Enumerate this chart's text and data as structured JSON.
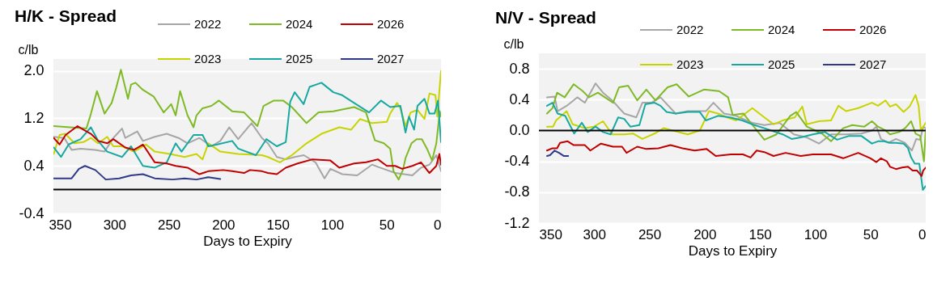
{
  "chart_data": [
    {
      "type": "line",
      "title": "H/K - Spread",
      "xlabel": "Days to Expiry",
      "ylabel": "c/lb",
      "xlim": [
        356,
        0
      ],
      "xticks": [
        350,
        300,
        250,
        200,
        150,
        100,
        50,
        0
      ],
      "ylim": [
        -0.4,
        2.2
      ],
      "yticks": [
        -0.4,
        0.4,
        1.2,
        {
          "value": 2,
          "label": "2.0"
        }
      ],
      "grid": "y",
      "legend": "top",
      "ref_lines": [
        {
          "axis": "y",
          "value": 0,
          "color": "#000000"
        }
      ],
      "series": [
        {
          "name": "2022",
          "color": "#a6a6a6",
          "x": [
            355.7,
            346,
            339.3,
            331,
            317.5,
            309,
            301,
            292.9,
            290,
            279,
            273.8,
            262.9,
            251.9,
            241,
            232.8,
            221.9,
            210.9,
            202.7,
            194.5,
            186.3,
            174,
            164.5,
            159,
            150.8,
            142.6,
            134.4,
            126,
            115.3,
            107,
            101.6,
            90.7,
            77,
            63.4,
            49.8,
            42,
            34.1,
            26.3,
            18.4,
            10.6,
            4.3,
            0
          ],
          "values": [
            0.89,
            0.87,
            0.67,
            0.69,
            0.67,
            0.64,
            0.87,
            1.03,
            0.87,
            0.98,
            0.82,
            0.89,
            0.94,
            0.87,
            0.78,
            0.87,
            0.73,
            0.82,
            1.05,
            0.85,
            1.12,
            0.87,
            0.78,
            0.55,
            0.51,
            0.55,
            0.58,
            0.46,
            0.19,
            0.35,
            0.26,
            0.24,
            0.42,
            0.33,
            0.28,
            0.26,
            0.24,
            0.37,
            0.42,
            0.58,
            0.31
          ]
        },
        {
          "name": "2023",
          "color": "#c8d400",
          "x": [
            355.7,
            350.3,
            345,
            336.6,
            328.4,
            321.6,
            314.8,
            306.6,
            301,
            292.9,
            282,
            271,
            262.9,
            249.2,
            235.5,
            224.6,
            219,
            213.7,
            202.7,
            186.3,
            164.5,
            159,
            148,
            137,
            123.5,
            109.8,
            93.4,
            82.5,
            74.3,
            63.4,
            49.8,
            46.7,
            40.4,
            37.3,
            32.6,
            27.9,
            21.6,
            15.2,
            10.6,
            5.1,
            3.4,
            0
          ],
          "values": [
            0.6,
            0.92,
            0.94,
            0.78,
            0.8,
            0.87,
            0.78,
            0.89,
            0.73,
            0.73,
            0.64,
            0.76,
            0.64,
            0.6,
            0.55,
            0.6,
            0.51,
            0.78,
            0.64,
            0.6,
            0.58,
            0.55,
            0.46,
            0.58,
            0.78,
            0.94,
            1.05,
            1.01,
            1.19,
            1.12,
            1.14,
            1.28,
            1.46,
            1.37,
            1.07,
            1.3,
            1.34,
            1.19,
            1.62,
            1.59,
            1.23,
            2.0
          ]
        },
        {
          "name": "2024",
          "color": "#7fba26",
          "x": [
            355.7,
            325.7,
            321.5,
            316,
            309,
            302.5,
            298.4,
            294,
            287.5,
            284.7,
            280.6,
            273.8,
            264,
            254.7,
            247.8,
            243.7,
            239.6,
            232.8,
            227.3,
            224.6,
            219,
            210.9,
            204,
            191.8,
            180.9,
            168.6,
            163,
            153.5,
            145,
            137,
            123.5,
            112.5,
            99,
            79.8,
            68.9,
            60.7,
            52.5,
            46.7,
            43.6,
            38.9,
            35,
            32.6,
            27.1,
            22.4,
            17.6,
            12.9,
            8.2,
            4.3,
            1.1,
            0
          ],
          "values": [
            1.07,
            1.03,
            1.28,
            1.66,
            1.28,
            1.46,
            1.71,
            2.02,
            1.53,
            1.77,
            1.8,
            1.68,
            1.57,
            1.3,
            1.44,
            1.25,
            1.66,
            1.25,
            1.05,
            1.25,
            1.37,
            1.41,
            1.5,
            1.32,
            1.3,
            1.07,
            1.41,
            1.5,
            1.5,
            1.39,
            1.12,
            1.3,
            1.32,
            1.39,
            1.3,
            0.83,
            0.78,
            0.69,
            0.31,
            0.17,
            0.33,
            0.53,
            0.78,
            0.85,
            0.85,
            0.69,
            0.49,
            0.78,
            1.32,
            1.23
          ]
        },
        {
          "name": "2025",
          "color": "#17a9a1",
          "x": [
            355.7,
            349,
            342,
            331,
            321.6,
            314.8,
            306.6,
            292.9,
            284.7,
            273.8,
            262.9,
            251.9,
            243.7,
            238.3,
            227.3,
            219,
            213.7,
            205.5,
            191.8,
            186.3,
            170,
            160.4,
            150.8,
            142.6,
            138.5,
            134.4,
            126.2,
            120.7,
            109.8,
            98.9,
            90.7,
            79.8,
            66.1,
            55.2,
            46.7,
            37.3,
            32.6,
            29.4,
            24.7,
            21.6,
            15.2,
            10.6,
            5.9,
            2.8,
            0
          ],
          "values": [
            0.71,
            0.55,
            0.76,
            0.85,
            1.05,
            0.82,
            0.64,
            0.55,
            0.73,
            0.4,
            0.37,
            0.46,
            0.78,
            0.64,
            0.92,
            0.92,
            0.73,
            0.76,
            0.82,
            0.69,
            0.58,
            0.85,
            0.73,
            0.8,
            1.48,
            1.64,
            1.44,
            1.73,
            1.8,
            1.64,
            1.59,
            1.46,
            1.3,
            1.5,
            1.39,
            1.41,
            0.96,
            1.23,
            1.01,
            1.41,
            1.53,
            1.28,
            1.28,
            1.5,
            0.8
          ]
        },
        {
          "name": "2026",
          "color": "#c00000",
          "x": [
            355.7,
            350.3,
            344.8,
            333.9,
            328.5,
            321.6,
            314.8,
            306.6,
            301,
            290,
            282,
            273.8,
            262.9,
            251.9,
            243.7,
            232.8,
            221.9,
            213.7,
            200,
            191.8,
            180.9,
            175.4,
            164.5,
            159,
            150.8,
            142.6,
            131.7,
            118,
            101.6,
            93.4,
            79.8,
            68.9,
            57.9,
            49.8,
            42.1,
            35.7,
            26.3,
            18.4,
            10.6,
            4.3,
            1.5,
            0
          ],
          "values": [
            0.87,
            0.76,
            0.92,
            1.07,
            1.01,
            0.94,
            0.82,
            0.78,
            0.85,
            0.71,
            0.67,
            0.76,
            0.46,
            0.44,
            0.4,
            0.37,
            0.26,
            0.31,
            0.33,
            0.31,
            0.28,
            0.33,
            0.31,
            0.28,
            0.26,
            0.37,
            0.44,
            0.51,
            0.49,
            0.37,
            0.44,
            0.46,
            0.51,
            0.4,
            0.4,
            0.35,
            0.4,
            0.46,
            0.28,
            0.4,
            0.6,
            0.42
          ]
        },
        {
          "name": "2027",
          "color": "#2e3a87",
          "x": [
            355.7,
            339.3,
            332.5,
            327,
            317.5,
            307.9,
            295.6,
            284.7,
            273.8,
            262.9,
            246.5,
            235.5,
            224.6,
            213.7,
            202.7
          ],
          "values": [
            0.19,
            0.19,
            0.35,
            0.4,
            0.33,
            0.17,
            0.19,
            0.24,
            0.26,
            0.19,
            0.17,
            0.19,
            0.17,
            0.21,
            0.18
          ]
        }
      ]
    },
    {
      "type": "line",
      "title": "N/V - Spread",
      "xlabel": "Days to Expiry",
      "ylabel": "c/lb",
      "xlim": [
        350,
        0
      ],
      "xticks": [
        350,
        300,
        250,
        200,
        150,
        100,
        50,
        0
      ],
      "ylim": [
        -1.2,
        1.0
      ],
      "yticks": [
        -1.2,
        -0.8,
        -0.4,
        {
          "value": 0,
          "label": "0.0"
        },
        0.4,
        0.8
      ],
      "grid": "y",
      "legend": "top",
      "ref_lines": [
        {
          "axis": "y",
          "value": 0,
          "color": "#000000"
        }
      ],
      "series": [
        {
          "name": "2022",
          "color": "#a6a6a6",
          "x": [
            342.7,
            335.8,
            333.1,
            324.9,
            315.3,
            308.4,
            298.8,
            292,
            283.7,
            272.8,
            261.9,
            256.4,
            248.2,
            240,
            226.3,
            215.3,
            198.9,
            192.1,
            182.5,
            171.6,
            160.6,
            156.9,
            146,
            132.2,
            119.3,
            107.6,
            96.6,
            85.7,
            72,
            58.3,
            48.7,
            44.6,
            40.5,
            33.7,
            26.9,
            18.9,
            12.5,
            8.6,
            5.0,
            2.3,
            0
          ],
          "values": [
            0.43,
            0.44,
            0.25,
            0.32,
            0.43,
            0.36,
            0.61,
            0.49,
            0.39,
            0.22,
            0.17,
            0.36,
            0.36,
            0.43,
            0.22,
            0.25,
            0.25,
            0.36,
            0.22,
            0.19,
            0.12,
            0.1,
            0.07,
            0.1,
            -0.05,
            -0.09,
            -0.17,
            -0.05,
            -0.05,
            -0.04,
            0,
            0.05,
            -0.11,
            -0.16,
            -0.11,
            -0.16,
            -0.26,
            -0.11,
            -0.12,
            0.05,
            0.03
          ]
        },
        {
          "name": "2023",
          "color": "#c8d400",
          "x": [
            342.7,
            337.2,
            334.5,
            324.9,
            319.4,
            308.4,
            300.2,
            292,
            283.7,
            272.8,
            264.6,
            256.4,
            245.4,
            237.2,
            229,
            215.3,
            204.4,
            196.1,
            187.9,
            179.7,
            171.6,
            163.3,
            156.9,
            146,
            137.7,
            129.5,
            118.5,
            111.7,
            107.6,
            96.6,
            85.7,
            79,
            72,
            61.1,
            48.7,
            43.2,
            36.4,
            32.3,
            26.9,
            20.0,
            14.6,
            9.2,
            6.4,
            4.4,
            0
          ],
          "values": [
            0.05,
            0.05,
            0.13,
            0.25,
            0.08,
            0.03,
            0.05,
            0.12,
            -0.05,
            -0.05,
            -0.04,
            -0.11,
            -0.04,
            0.03,
            0,
            -0.05,
            0,
            0.25,
            0.22,
            0.17,
            0.13,
            0.22,
            0.29,
            0.17,
            0.08,
            0.13,
            0.17,
            0.31,
            0.08,
            0.12,
            0.13,
            0.32,
            0.25,
            0.29,
            0.36,
            0.32,
            0.39,
            0.31,
            0.34,
            0.24,
            0.31,
            0.46,
            0.32,
            0,
            0.1
          ]
        },
        {
          "name": "2024",
          "color": "#7fba26",
          "x": [
            342.7,
            337.7,
            333.6,
            326.7,
            318.5,
            310.3,
            304.8,
            296.6,
            282.9,
            277.5,
            269.3,
            261,
            252.8,
            244.6,
            233.6,
            225.4,
            214.4,
            200.7,
            187,
            178.8,
            174.7,
            165,
            159.5,
            146,
            135,
            122.6,
            117.2,
            107.6,
            93.9,
            85.7,
            74.7,
            66.5,
            55.5,
            48.7,
            43.2,
            36.4,
            32.3,
            24.1,
            18.7,
            13.2,
            9.2,
            5.0,
            1.6,
            0
          ],
          "values": [
            0.22,
            0.29,
            0.49,
            0.43,
            0.6,
            0.51,
            0.43,
            0.49,
            0.36,
            0.56,
            0.58,
            0.39,
            0.53,
            0.39,
            0.56,
            0.6,
            0.44,
            0.53,
            0.51,
            0.43,
            0.2,
            0.22,
            0.12,
            -0.12,
            -0.05,
            0.19,
            0.24,
            0.05,
            -0.04,
            -0.14,
            0.03,
            0.07,
            0.05,
            0.12,
            0.05,
            0,
            -0.05,
            -0.02,
            0.03,
            0.12,
            -0.04,
            -0.07,
            -0.4,
            0.01
          ]
        },
        {
          "name": "2025",
          "color": "#17a9a1",
          "x": [
            342.7,
            337.7,
            333.1,
            326.3,
            318.1,
            311.2,
            305.8,
            298.8,
            292,
            285.1,
            278.3,
            272.8,
            267.3,
            259.1,
            253.7,
            245.4,
            240,
            234.5,
            226.3,
            215.3,
            204.4,
            198.9,
            187.9,
            177,
            166,
            155.1,
            146,
            129.5,
            121.3,
            113.1,
            102.1,
            91.2,
            80.2,
            69.3,
            58.3,
            48.7,
            43.2,
            37.8,
            32.3,
            26.9,
            20.0,
            16.0,
            13.2,
            9.9,
            5.8,
            2.6,
            0
          ],
          "values": [
            0.32,
            0.36,
            0.22,
            0.19,
            -0.04,
            0.1,
            -0.02,
            0.05,
            -0.02,
            -0.05,
            0.17,
            0.15,
            0.05,
            0.07,
            0.34,
            0.36,
            0.32,
            0.24,
            0.22,
            0.24,
            0.24,
            0.13,
            0.19,
            0.17,
            0.13,
            0.07,
            0.03,
            -0.05,
            -0.11,
            -0.09,
            -0.05,
            -0.02,
            -0.12,
            -0.07,
            -0.07,
            -0.17,
            -0.14,
            -0.14,
            -0.16,
            -0.16,
            -0.17,
            -0.23,
            -0.35,
            -0.43,
            -0.43,
            -0.77,
            -0.72
          ]
        },
        {
          "name": "2026",
          "color": "#c00000",
          "x": [
            342.7,
            337.7,
            333.6,
            330.9,
            324,
            318.5,
            308.4,
            303.5,
            293.9,
            283,
            274.8,
            270.7,
            261.1,
            252.8,
            241.9,
            231,
            220,
            209.1,
            198.2,
            190,
            176.3,
            165.4,
            158.5,
            153,
            146,
            137.7,
            126.8,
            113.1,
            102.1,
            85.7,
            74.7,
            61.1,
            50,
            44.6,
            40.5,
            35.1,
            32.3,
            26.9,
            21.4,
            16.0,
            11.9,
            7.8,
            3.7,
            2.3,
            0
          ],
          "values": [
            -0.26,
            -0.23,
            -0.23,
            -0.16,
            -0.14,
            -0.19,
            -0.19,
            -0.26,
            -0.17,
            -0.21,
            -0.21,
            -0.29,
            -0.21,
            -0.24,
            -0.23,
            -0.19,
            -0.23,
            -0.26,
            -0.24,
            -0.33,
            -0.31,
            -0.31,
            -0.35,
            -0.26,
            -0.28,
            -0.33,
            -0.29,
            -0.33,
            -0.31,
            -0.31,
            -0.36,
            -0.29,
            -0.36,
            -0.41,
            -0.36,
            -0.4,
            -0.47,
            -0.5,
            -0.48,
            -0.47,
            -0.52,
            -0.52,
            -0.59,
            -0.52,
            -0.48
          ]
        },
        {
          "name": "2027",
          "color": "#2e3a87",
          "x": [
            342.7,
            340,
            335.8,
            331.8,
            327.6,
            323.5
          ],
          "values": [
            -0.33,
            -0.32,
            -0.26,
            -0.29,
            -0.33,
            -0.33
          ]
        }
      ]
    }
  ]
}
